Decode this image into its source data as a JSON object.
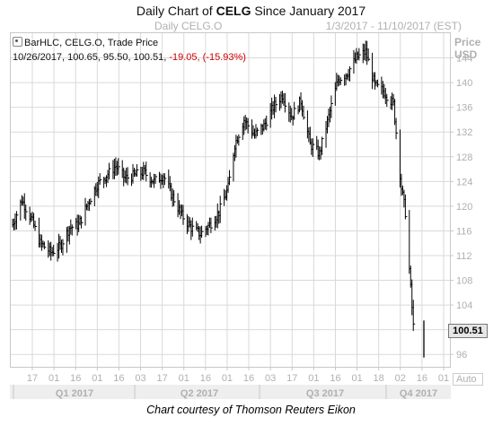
{
  "header": {
    "title_prefix": "Daily Chart of ",
    "title_symbol": "CELG",
    "title_suffix": " Since January 2017",
    "subtitle_left": "Daily CELG.O",
    "subtitle_right": "1/3/2017 - 11/10/2017 (EST)"
  },
  "legend": {
    "line1": "BarHLC, CELG.O, Trade Price",
    "ohlc_values": "10/26/2017, 100.65, 95.50, 100.51, ",
    "change": "-19.05, (-15.93%)"
  },
  "axis": {
    "price_label": "Price",
    "unit_label": "USD",
    "last_value": "100.51",
    "auto_label": "Auto"
  },
  "footer": {
    "credit": "Chart courtesy of Thomson Reuters Eikon"
  },
  "colors": {
    "bars": "#000000",
    "grid": "#d9d9d9",
    "change_negative": "#d00000",
    "axis_text": "#b0b0b0"
  },
  "chart_data": {
    "type": "bar",
    "style": "BarHLC",
    "title": "Daily Chart of CELG Since January 2017",
    "subtitle": "Daily CELG.O",
    "date_range": "1/3/2017 - 11/10/2017 (EST)",
    "ylabel": "Price USD",
    "ylim": [
      94,
      148
    ],
    "yticks": [
      96,
      100,
      104,
      108,
      112,
      116,
      120,
      124,
      128,
      132,
      136,
      140,
      144
    ],
    "grid": true,
    "x_tick_labels": [
      "17",
      "01",
      "16",
      "01",
      "16",
      "03",
      "17",
      "01",
      "16",
      "01",
      "16",
      "03",
      "17",
      "01",
      "16",
      "01",
      "18",
      "02",
      "16",
      "01"
    ],
    "quarters": [
      "Q1 2017",
      "Q2 2017",
      "Q3 2017",
      "Q4 2017"
    ],
    "x_range": [
      "2017-01-03",
      "2017-11-10"
    ],
    "points": [
      {
        "date": "2017-01-03",
        "close": 117.0
      },
      {
        "date": "2017-01-10",
        "close": 121.0
      },
      {
        "date": "2017-01-17",
        "close": 118.0
      },
      {
        "date": "2017-01-24",
        "close": 114.0
      },
      {
        "date": "2017-02-01",
        "close": 112.5
      },
      {
        "date": "2017-02-08",
        "close": 113.5
      },
      {
        "date": "2017-02-15",
        "close": 116.5
      },
      {
        "date": "2017-02-22",
        "close": 117.0
      },
      {
        "date": "2017-03-01",
        "close": 120.5
      },
      {
        "date": "2017-03-08",
        "close": 123.5
      },
      {
        "date": "2017-03-15",
        "close": 125.0
      },
      {
        "date": "2017-03-22",
        "close": 126.5
      },
      {
        "date": "2017-03-29",
        "close": 124.5
      },
      {
        "date": "2017-04-05",
        "close": 125.0
      },
      {
        "date": "2017-04-12",
        "close": 125.5
      },
      {
        "date": "2017-04-20",
        "close": 124.0
      },
      {
        "date": "2017-04-27",
        "close": 125.0
      },
      {
        "date": "2017-05-04",
        "close": 121.5
      },
      {
        "date": "2017-05-11",
        "close": 118.5
      },
      {
        "date": "2017-05-18",
        "close": 116.5
      },
      {
        "date": "2017-05-25",
        "close": 115.5
      },
      {
        "date": "2017-06-01",
        "close": 117.0
      },
      {
        "date": "2017-06-08",
        "close": 119.0
      },
      {
        "date": "2017-06-15",
        "close": 123.0
      },
      {
        "date": "2017-06-20",
        "close": 130.0
      },
      {
        "date": "2017-06-27",
        "close": 134.0
      },
      {
        "date": "2017-07-05",
        "close": 131.5
      },
      {
        "date": "2017-07-12",
        "close": 133.0
      },
      {
        "date": "2017-07-19",
        "close": 136.0
      },
      {
        "date": "2017-07-26",
        "close": 138.0
      },
      {
        "date": "2017-08-02",
        "close": 134.5
      },
      {
        "date": "2017-08-09",
        "close": 137.0
      },
      {
        "date": "2017-08-16",
        "close": 130.0
      },
      {
        "date": "2017-08-23",
        "close": 128.5
      },
      {
        "date": "2017-08-30",
        "close": 134.5
      },
      {
        "date": "2017-09-06",
        "close": 140.5
      },
      {
        "date": "2017-09-13",
        "close": 141.5
      },
      {
        "date": "2017-09-20",
        "close": 144.0
      },
      {
        "date": "2017-09-27",
        "close": 145.0
      },
      {
        "date": "2017-10-04",
        "close": 139.5
      },
      {
        "date": "2017-10-11",
        "close": 138.5
      },
      {
        "date": "2017-10-18",
        "close": 136.5
      },
      {
        "date": "2017-10-24",
        "close": 123.0
      },
      {
        "date": "2017-10-27",
        "close": 119.0
      },
      {
        "date": "2017-11-02",
        "close": 100.5
      }
    ]
  }
}
